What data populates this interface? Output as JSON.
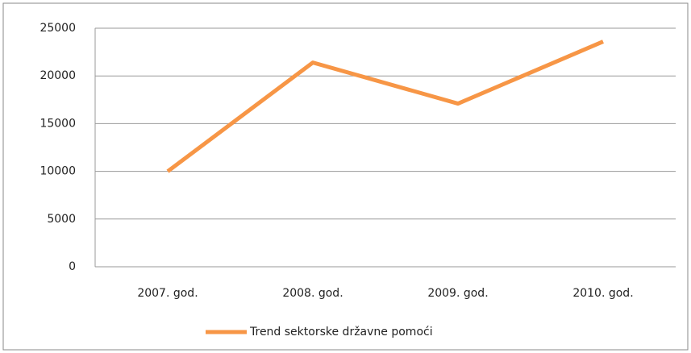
{
  "chart_data": {
    "type": "line",
    "categories": [
      "2007. god.",
      "2008. god.",
      "2009. god.",
      "2010. god."
    ],
    "series": [
      {
        "name": "Trend sektorske državne pomoći",
        "color": "#f79646",
        "values": [
          10000,
          21400,
          17100,
          23600
        ]
      }
    ],
    "ylim": [
      0,
      25000
    ],
    "yticks": [
      0,
      5000,
      10000,
      15000,
      20000,
      25000
    ],
    "grid": true,
    "legend": "bottom"
  }
}
